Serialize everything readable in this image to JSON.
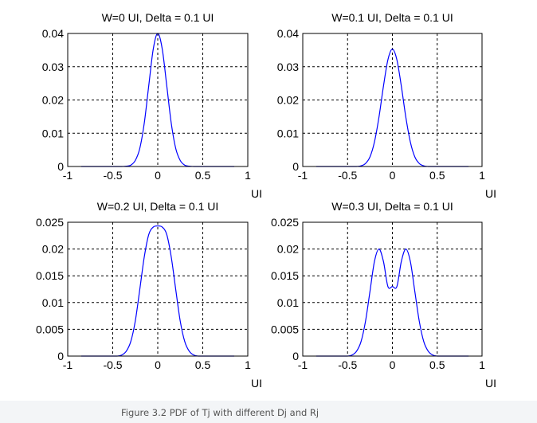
{
  "caption": "Figure 3.2 PDF of Tj with different Dj and Rj",
  "colors": {
    "curve": "#0000ff",
    "grid": "#000000",
    "axes": "#000000"
  },
  "chart_data": [
    {
      "type": "line",
      "title": "W=0 UI, Delta = 0.1 UI",
      "xlabel": "UI",
      "ylabel": "",
      "xlim": [
        -1,
        1
      ],
      "ylim": [
        0,
        0.04
      ],
      "xticks": [
        -1,
        -0.5,
        0,
        0.5,
        1
      ],
      "xtick_labels": [
        "-1",
        "-0.5",
        "0",
        "0.5",
        "1"
      ],
      "yticks": [
        0,
        0.01,
        0.02,
        0.03,
        0.04
      ],
      "ytick_labels": [
        "0",
        "0.01",
        "0.02",
        "0.03",
        "0.04"
      ],
      "grid": true,
      "x": [
        -0.85,
        -0.8,
        -0.75,
        -0.7,
        -0.65,
        -0.6,
        -0.55,
        -0.5,
        -0.45,
        -0.4,
        -0.35,
        -0.3,
        -0.25,
        -0.2,
        -0.15,
        -0.1,
        -0.05,
        0,
        0.05,
        0.1,
        0.15,
        0.2,
        0.25,
        0.3,
        0.35,
        0.4,
        0.45,
        0.5,
        0.55,
        0.6,
        0.65,
        0.7,
        0.75,
        0.8,
        0.85
      ],
      "y": [
        0,
        0,
        0,
        0,
        0,
        0,
        0,
        0,
        0,
        0,
        0.0001,
        0.0004,
        0.0018,
        0.0054,
        0.013,
        0.0243,
        0.0353,
        0.04,
        0.0353,
        0.0243,
        0.013,
        0.0054,
        0.0018,
        0.0004,
        0.0001,
        0,
        0,
        0,
        0,
        0,
        0,
        0,
        0,
        0,
        0
      ]
    },
    {
      "type": "line",
      "title": "W=0.1 UI, Delta = 0.1 UI",
      "xlabel": "UI",
      "ylabel": "",
      "xlim": [
        -1,
        1
      ],
      "ylim": [
        0,
        0.04
      ],
      "xticks": [
        -1,
        -0.5,
        0,
        0.5,
        1
      ],
      "xtick_labels": [
        "-1",
        "-0.5",
        "0",
        "0.5",
        "1"
      ],
      "yticks": [
        0,
        0.01,
        0.02,
        0.03,
        0.04
      ],
      "ytick_labels": [
        "0",
        "0.01",
        "0.02",
        "0.03",
        "0.04"
      ],
      "grid": true,
      "x": [
        -0.85,
        -0.8,
        -0.75,
        -0.7,
        -0.65,
        -0.6,
        -0.55,
        -0.5,
        -0.45,
        -0.4,
        -0.35,
        -0.3,
        -0.25,
        -0.2,
        -0.15,
        -0.1,
        -0.05,
        0,
        0.05,
        0.1,
        0.15,
        0.2,
        0.25,
        0.3,
        0.35,
        0.4,
        0.45,
        0.5,
        0.55,
        0.6,
        0.65,
        0.7,
        0.75,
        0.8,
        0.85
      ],
      "y": [
        0,
        0,
        0,
        0,
        0,
        0,
        0,
        0,
        0,
        0,
        0.0002,
        0.0009,
        0.0029,
        0.0074,
        0.0148,
        0.0241,
        0.0321,
        0.0353,
        0.0321,
        0.0241,
        0.0148,
        0.0074,
        0.0029,
        0.0009,
        0.0002,
        0,
        0,
        0,
        0,
        0,
        0,
        0,
        0,
        0,
        0
      ]
    },
    {
      "type": "line",
      "title": "W=0.2 UI, Delta = 0.1 UI",
      "xlabel": "UI",
      "ylabel": "",
      "xlim": [
        -1,
        1
      ],
      "ylim": [
        0,
        0.025
      ],
      "xticks": [
        -1,
        -0.5,
        0,
        0.5,
        1
      ],
      "xtick_labels": [
        "-1",
        "-0.5",
        "0",
        "0.5",
        "1"
      ],
      "yticks": [
        0,
        0.005,
        0.01,
        0.015,
        0.02,
        0.025
      ],
      "ytick_labels": [
        "0",
        "0.005",
        "0.01",
        "0.015",
        "0.02",
        "0.025"
      ],
      "grid": true,
      "x": [
        -0.85,
        -0.8,
        -0.75,
        -0.7,
        -0.65,
        -0.6,
        -0.55,
        -0.5,
        -0.45,
        -0.4,
        -0.35,
        -0.3,
        -0.25,
        -0.2,
        -0.15,
        -0.1,
        -0.05,
        0,
        0.05,
        0.1,
        0.15,
        0.2,
        0.25,
        0.3,
        0.35,
        0.4,
        0.45,
        0.5,
        0.55,
        0.6,
        0.65,
        0.7,
        0.75,
        0.8,
        0.85
      ],
      "y": [
        0,
        0,
        0,
        0,
        0,
        0,
        0,
        0,
        0,
        0.0002,
        0.0009,
        0.0027,
        0.0065,
        0.0124,
        0.0185,
        0.0227,
        0.0241,
        0.0243,
        0.0241,
        0.0227,
        0.0185,
        0.0124,
        0.0065,
        0.0027,
        0.0009,
        0.0002,
        0,
        0,
        0,
        0,
        0,
        0,
        0,
        0,
        0
      ]
    },
    {
      "type": "line",
      "title": "W=0.3 UI, Delta = 0.1 UI",
      "xlabel": "UI",
      "ylabel": "",
      "xlim": [
        -1,
        1
      ],
      "ylim": [
        0,
        0.025
      ],
      "xticks": [
        -1,
        -0.5,
        0,
        0.5,
        1
      ],
      "xtick_labels": [
        "-1",
        "-0.5",
        "0",
        "0.5",
        "1"
      ],
      "yticks": [
        0,
        0.005,
        0.01,
        0.015,
        0.02,
        0.025
      ],
      "ytick_labels": [
        "0",
        "0.005",
        "0.01",
        "0.015",
        "0.02",
        "0.025"
      ],
      "grid": true,
      "x": [
        -0.85,
        -0.8,
        -0.75,
        -0.7,
        -0.65,
        -0.6,
        -0.55,
        -0.5,
        -0.45,
        -0.4,
        -0.35,
        -0.3,
        -0.25,
        -0.2,
        -0.15,
        -0.1,
        -0.05,
        0,
        0.05,
        0.1,
        0.15,
        0.2,
        0.25,
        0.3,
        0.35,
        0.4,
        0.45,
        0.5,
        0.55,
        0.6,
        0.65,
        0.7,
        0.75,
        0.8,
        0.85
      ],
      "y": [
        0,
        0,
        0,
        0,
        0,
        0,
        0,
        0,
        0.0002,
        0.0009,
        0.0027,
        0.0065,
        0.0121,
        0.0177,
        0.02,
        0.0177,
        0.013,
        0.013,
        0.013,
        0.0177,
        0.02,
        0.0177,
        0.0121,
        0.0065,
        0.0027,
        0.0009,
        0.0002,
        0,
        0,
        0,
        0,
        0,
        0,
        0,
        0
      ]
    }
  ]
}
